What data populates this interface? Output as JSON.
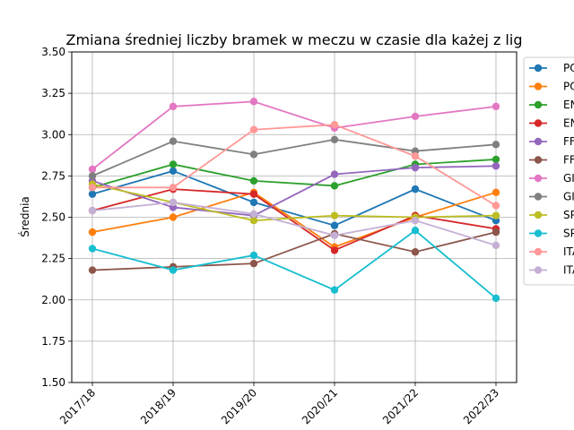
{
  "chart_data": {
    "type": "line",
    "title": "Zmiana średniej liczby bramek w meczu w czasie dla każej z lig",
    "xlabel": "",
    "ylabel": "Średnia",
    "categories": [
      "2017/18",
      "2018/19",
      "2019/20",
      "2020/21",
      "2021/22",
      "2022/23"
    ],
    "yticks": [
      "1.50",
      "1.75",
      "2.00",
      "2.25",
      "2.50",
      "2.75",
      "3.00",
      "3.25",
      "3.50"
    ],
    "ylim": [
      1.5,
      3.5
    ],
    "grid": true,
    "legend_position": "right, clipped",
    "series": [
      {
        "name": "PO",
        "color": "#1f77b4",
        "values": [
          2.64,
          2.78,
          2.59,
          2.45,
          2.67,
          2.48
        ]
      },
      {
        "name": "PO",
        "color": "#ff7f0e",
        "values": [
          2.41,
          2.5,
          2.65,
          2.32,
          2.5,
          2.65
        ]
      },
      {
        "name": "EN",
        "color": "#2ca02c",
        "values": [
          2.68,
          2.82,
          2.72,
          2.69,
          2.82,
          2.85
        ]
      },
      {
        "name": "EN",
        "color": "#d62728",
        "values": [
          2.54,
          2.67,
          2.64,
          2.3,
          2.51,
          2.43
        ]
      },
      {
        "name": "FF",
        "color": "#9467bd",
        "values": [
          2.72,
          2.56,
          2.51,
          2.76,
          2.8,
          2.81
        ]
      },
      {
        "name": "FF",
        "color": "#8c564b",
        "values": [
          2.18,
          2.2,
          2.22,
          2.4,
          2.29,
          2.41
        ]
      },
      {
        "name": "GI",
        "color": "#e377c2",
        "values": [
          2.79,
          3.17,
          3.2,
          3.04,
          3.11,
          3.17
        ]
      },
      {
        "name": "GI",
        "color": "#7f7f7f",
        "values": [
          2.75,
          2.96,
          2.88,
          2.97,
          2.9,
          2.94
        ]
      },
      {
        "name": "SP",
        "color": "#bcbd22",
        "values": [
          2.7,
          2.59,
          2.48,
          2.51,
          2.5,
          2.51
        ]
      },
      {
        "name": "SP",
        "color": "#17becf",
        "values": [
          2.31,
          2.18,
          2.27,
          2.06,
          2.42,
          2.01
        ]
      },
      {
        "name": "ITA",
        "color": "#ff9896",
        "values": [
          2.68,
          2.68,
          3.03,
          3.06,
          2.87,
          2.57
        ]
      },
      {
        "name": "ITA",
        "color": "#c5b0d5",
        "values": [
          2.54,
          2.59,
          2.52,
          2.39,
          2.48,
          2.33
        ]
      }
    ]
  }
}
